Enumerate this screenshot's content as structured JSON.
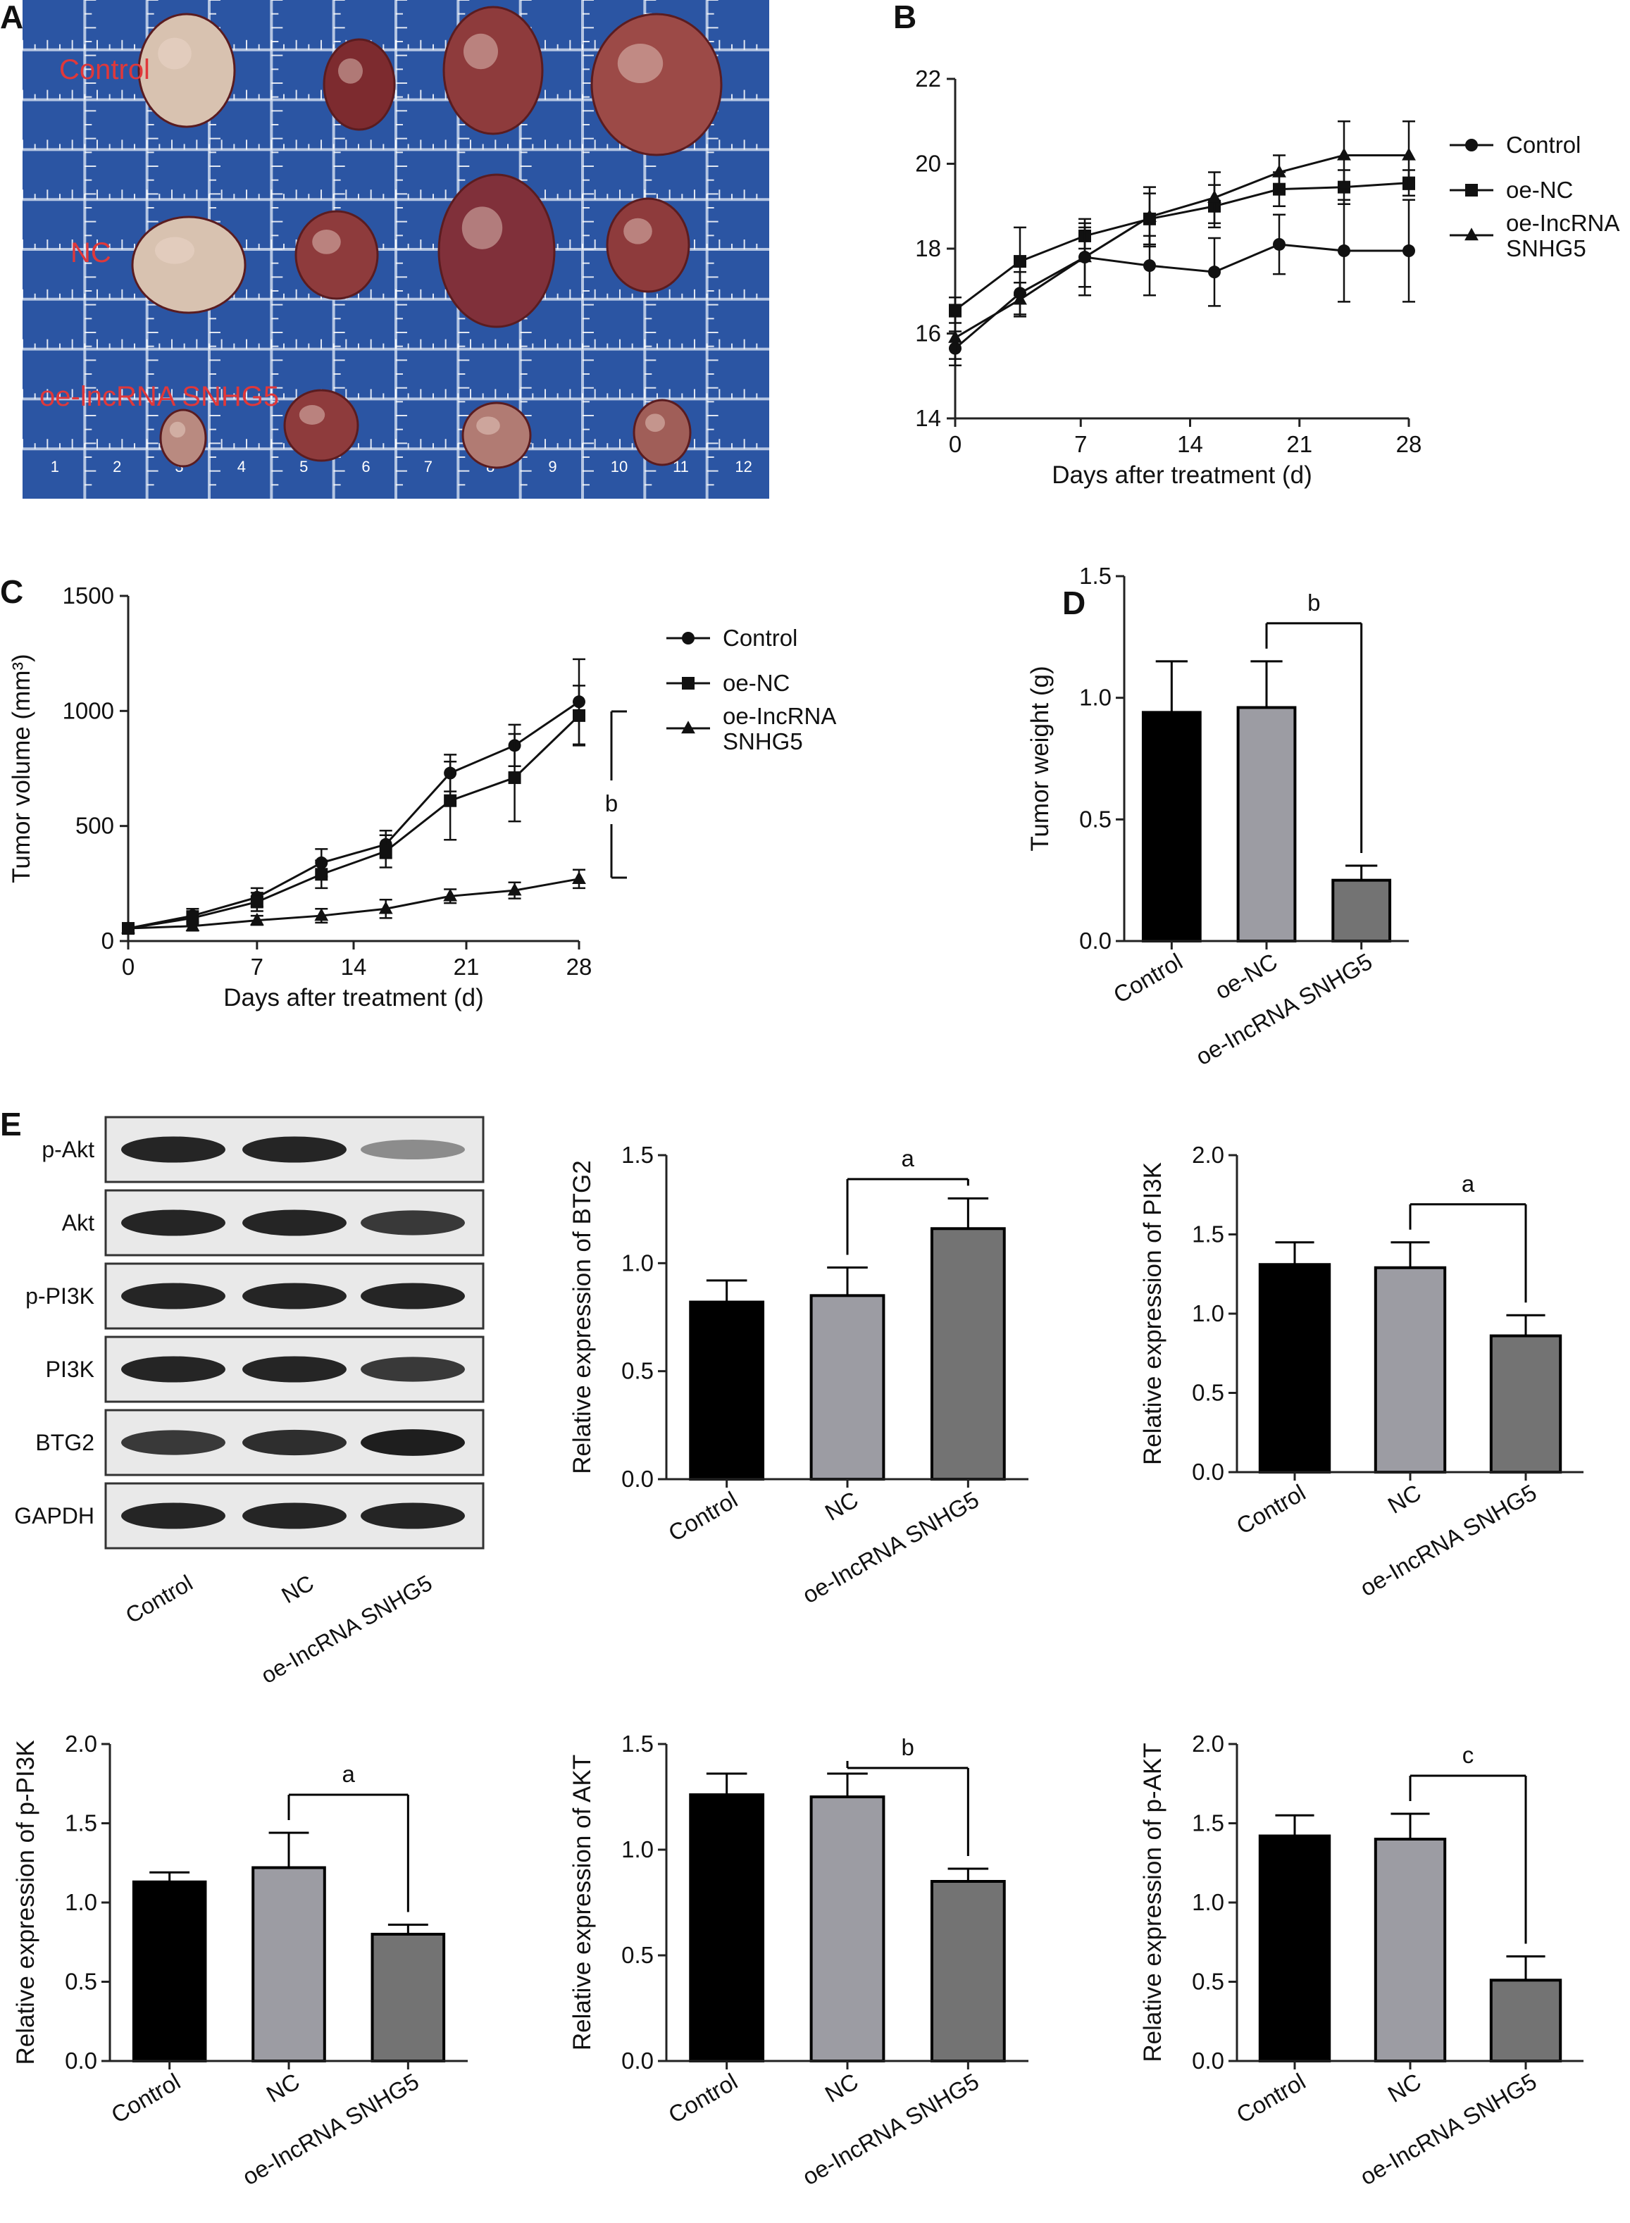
{
  "panel_letters": [
    "A",
    "B",
    "C",
    "D",
    "E"
  ],
  "photo": {
    "group_labels": [
      "Control",
      "NC",
      "oe-lncRNA SNHG5"
    ],
    "ruler_numbers": [
      "1",
      "2",
      "3",
      "4",
      "5",
      "6",
      "7",
      "8",
      "9",
      "10",
      "11",
      "12"
    ],
    "colors": {
      "background": "#2b55a3",
      "tumor": "#8e3b3c"
    }
  },
  "blot": {
    "rows": [
      "p-Akt",
      "Akt",
      "p-PI3K",
      "PI3K",
      "BTG2",
      "GAPDH"
    ],
    "lanes": [
      "Control",
      "NC",
      "oe-IncRNA SNHG5"
    ],
    "band_intensity": [
      [
        0.95,
        0.95,
        0.45
      ],
      [
        0.95,
        0.95,
        0.85
      ],
      [
        0.95,
        0.95,
        0.95
      ],
      [
        0.95,
        0.95,
        0.85
      ],
      [
        0.85,
        0.9,
        0.98
      ],
      [
        0.95,
        0.95,
        0.95
      ]
    ]
  },
  "chart_data": [
    {
      "id": "B",
      "type": "line",
      "x": [
        0,
        4,
        8,
        12,
        16,
        20,
        24,
        28
      ],
      "xticks": [
        "0",
        "7",
        "14",
        "21",
        "28"
      ],
      "xtick_values": [
        0,
        7.75,
        14.5,
        21.25,
        28
      ],
      "yticks": [
        "14",
        "16",
        "18",
        "20",
        "22"
      ],
      "xlabel": "Days after treatment (d)",
      "ylabel": "",
      "xlim": [
        0,
        28
      ],
      "ylim": [
        14,
        22
      ],
      "legend_position": "right",
      "series": [
        {
          "name": "Control",
          "marker": "circle",
          "values": [
            15.65,
            16.95,
            17.8,
            17.6,
            17.45,
            18.1,
            17.95,
            17.95
          ],
          "err": [
            0.4,
            0.5,
            0.7,
            0.7,
            0.8,
            0.7,
            1.2,
            1.2
          ]
        },
        {
          "name": "oe-NC",
          "marker": "square",
          "values": [
            16.55,
            17.7,
            18.3,
            18.7,
            19.0,
            19.4,
            19.45,
            19.55
          ],
          "err": [
            0.3,
            0.8,
            0.3,
            0.6,
            0.5,
            0.4,
            0.4,
            0.3
          ]
        },
        {
          "name": "oe-IncRNA SNHG5",
          "marker": "triangle",
          "values": [
            15.9,
            16.8,
            17.8,
            18.75,
            19.2,
            19.8,
            20.2,
            20.2
          ],
          "err": [
            0.5,
            0.4,
            0.9,
            0.7,
            0.6,
            0.4,
            0.8,
            0.8
          ]
        }
      ]
    },
    {
      "id": "C",
      "type": "line",
      "x": [
        0,
        4,
        8,
        12,
        16,
        20,
        24,
        28
      ],
      "xticks": [
        "0",
        "7",
        "14",
        "21",
        "28"
      ],
      "xtick_values": [
        0,
        8,
        14,
        21,
        28
      ],
      "yticks": [
        "0",
        "500",
        "1000",
        "1500"
      ],
      "xlabel": "Days after treatment (d)",
      "ylabel": "Tumor volume (mm³)",
      "xlim": [
        0,
        28
      ],
      "ylim": [
        0,
        1500
      ],
      "legend_position": "right",
      "significance": "b",
      "series": [
        {
          "name": "Control",
          "marker": "circle",
          "values": [
            55,
            110,
            190,
            340,
            420,
            730,
            850,
            1040
          ],
          "err": [
            10,
            30,
            40,
            60,
            60,
            80,
            90,
            185
          ]
        },
        {
          "name": "oe-NC",
          "marker": "square",
          "values": [
            55,
            100,
            170,
            290,
            390,
            610,
            710,
            980
          ],
          "err": [
            10,
            30,
            40,
            60,
            70,
            170,
            190,
            130
          ]
        },
        {
          "name": "oe-IncRNA SNHG5",
          "marker": "triangle",
          "values": [
            55,
            65,
            90,
            110,
            140,
            195,
            220,
            270
          ],
          "err": [
            10,
            20,
            20,
            30,
            40,
            30,
            35,
            40
          ]
        }
      ]
    },
    {
      "id": "D",
      "type": "bar",
      "categories": [
        "Control",
        "oe-NC",
        "oe-IncRNA SNHG5"
      ],
      "values": [
        0.94,
        0.96,
        0.25
      ],
      "err": [
        0.21,
        0.19,
        0.06
      ],
      "yticks": [
        "0.0",
        "0.5",
        "1.0",
        "1.5"
      ],
      "ylabel": "Tumor weight (g)",
      "ylim": [
        0,
        1.5
      ],
      "significance": "b"
    },
    {
      "id": "E-BTG2",
      "type": "bar",
      "categories": [
        "Control",
        "NC",
        "oe-IncRNA SNHG5"
      ],
      "values": [
        0.82,
        0.85,
        1.16
      ],
      "err": [
        0.1,
        0.13,
        0.14
      ],
      "yticks": [
        "0.0",
        "0.5",
        "1.0",
        "1.5"
      ],
      "ylabel": "Relative expression of BTG2",
      "ylim": [
        0,
        1.5
      ],
      "significance": "a"
    },
    {
      "id": "E-PI3K",
      "type": "bar",
      "categories": [
        "Control",
        "NC",
        "oe-IncRNA SNHG5"
      ],
      "values": [
        1.31,
        1.29,
        0.86
      ],
      "err": [
        0.14,
        0.16,
        0.13
      ],
      "yticks": [
        "0.0",
        "0.5",
        "1.0",
        "1.5",
        "2.0"
      ],
      "ylabel": "Relative expression of PI3K",
      "ylim": [
        0,
        2
      ],
      "significance": "a"
    },
    {
      "id": "E-pPI3K",
      "type": "bar",
      "categories": [
        "Control",
        "NC",
        "oe-IncRNA SNHG5"
      ],
      "values": [
        1.13,
        1.22,
        0.8
      ],
      "err": [
        0.06,
        0.22,
        0.06
      ],
      "yticks": [
        "0.0",
        "0.5",
        "1.0",
        "1.5",
        "2.0"
      ],
      "ylabel": "Relative expression of p-PI3K",
      "ylim": [
        0,
        2
      ],
      "significance": "a"
    },
    {
      "id": "E-AKT",
      "type": "bar",
      "categories": [
        "Control",
        "NC",
        "oe-IncRNA SNHG5"
      ],
      "values": [
        1.26,
        1.25,
        0.85
      ],
      "err": [
        0.1,
        0.11,
        0.06
      ],
      "yticks": [
        "0.0",
        "0.5",
        "1.0",
        "1.5"
      ],
      "ylabel": "Relative expression of AKT",
      "ylim": [
        0,
        1.5
      ],
      "significance": "b"
    },
    {
      "id": "E-pAKT",
      "type": "bar",
      "categories": [
        "Control",
        "NC",
        "oe-IncRNA SNHG5"
      ],
      "values": [
        1.42,
        1.4,
        0.51
      ],
      "err": [
        0.13,
        0.16,
        0.15
      ],
      "yticks": [
        "0.0",
        "0.5",
        "1.0",
        "1.5",
        "2.0"
      ],
      "ylabel": "Relative expression of p-AKT",
      "ylim": [
        0,
        2
      ],
      "significance": "c"
    }
  ],
  "colors": {
    "bar1": "#000000",
    "bar2": "#9c9ca3",
    "bar3": "#737373",
    "axis": "#222222"
  }
}
